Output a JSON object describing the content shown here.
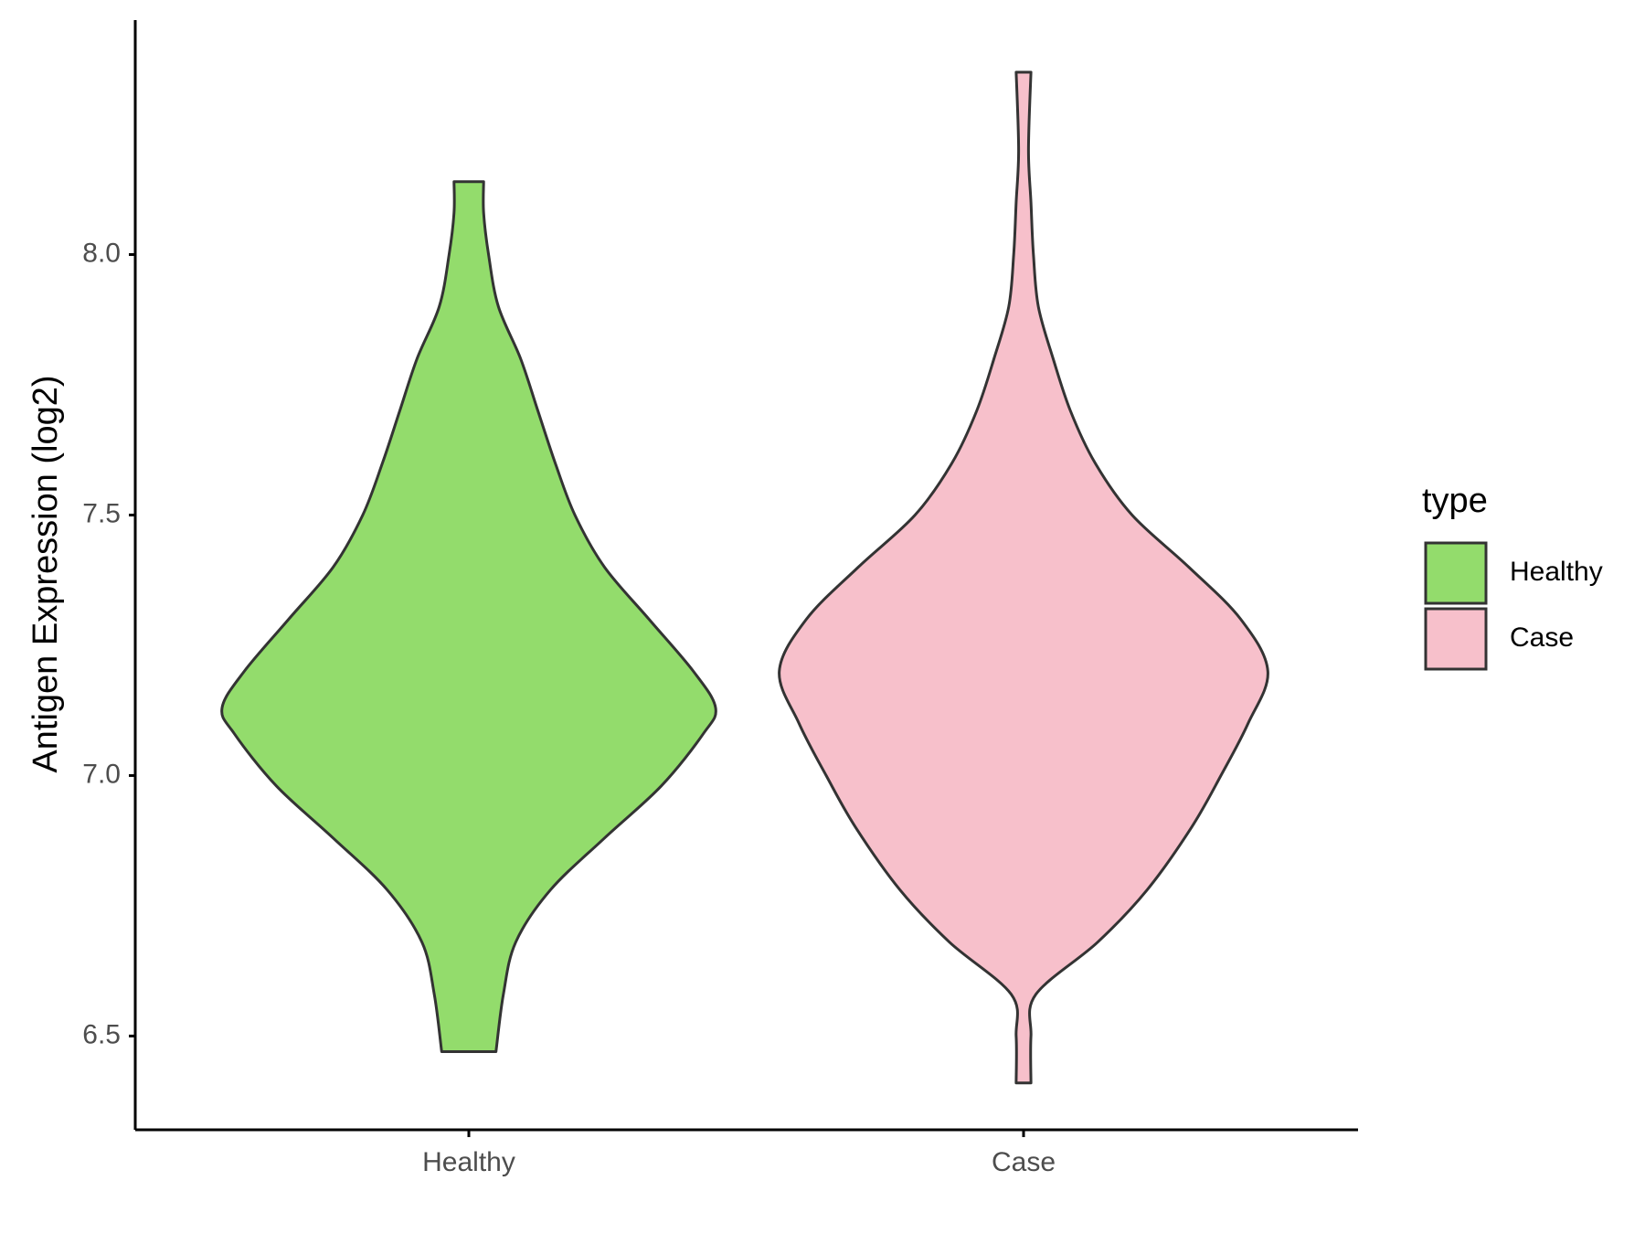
{
  "chart_data": {
    "type": "violin",
    "ylabel": "Antigen Expression (log2)",
    "xlabel": "",
    "categories": [
      "Healthy",
      "Case"
    ],
    "ylim": [
      6.32,
      8.45
    ],
    "yticks": [
      "6.5",
      "7.0",
      "7.5",
      "8.0"
    ],
    "grid": false,
    "legend": {
      "title": "type",
      "position": "right"
    },
    "series": [
      {
        "name": "Healthy",
        "color": "#93DC6C",
        "min": 6.47,
        "max": 8.14,
        "density_profile": [
          [
            6.47,
            0.11
          ],
          [
            6.58,
            0.14
          ],
          [
            6.68,
            0.19
          ],
          [
            6.78,
            0.33
          ],
          [
            6.88,
            0.55
          ],
          [
            6.98,
            0.78
          ],
          [
            7.08,
            0.95
          ],
          [
            7.13,
            1.0
          ],
          [
            7.2,
            0.91
          ],
          [
            7.3,
            0.73
          ],
          [
            7.4,
            0.55
          ],
          [
            7.5,
            0.43
          ],
          [
            7.6,
            0.35
          ],
          [
            7.7,
            0.28
          ],
          [
            7.8,
            0.21
          ],
          [
            7.9,
            0.12
          ],
          [
            8.0,
            0.08
          ],
          [
            8.08,
            0.06
          ],
          [
            8.14,
            0.06
          ]
        ]
      },
      {
        "name": "Case",
        "color": "#F7C0CB",
        "min": 6.41,
        "max": 8.35,
        "density_profile": [
          [
            6.41,
            0.03
          ],
          [
            6.5,
            0.03
          ],
          [
            6.58,
            0.05
          ],
          [
            6.68,
            0.3
          ],
          [
            6.78,
            0.5
          ],
          [
            6.9,
            0.68
          ],
          [
            7.0,
            0.8
          ],
          [
            7.1,
            0.91
          ],
          [
            7.2,
            0.99
          ],
          [
            7.3,
            0.88
          ],
          [
            7.4,
            0.67
          ],
          [
            7.5,
            0.44
          ],
          [
            7.6,
            0.29
          ],
          [
            7.7,
            0.19
          ],
          [
            7.8,
            0.12
          ],
          [
            7.9,
            0.06
          ],
          [
            8.0,
            0.04
          ],
          [
            8.1,
            0.03
          ],
          [
            8.2,
            0.02
          ],
          [
            8.35,
            0.03
          ]
        ]
      }
    ]
  }
}
